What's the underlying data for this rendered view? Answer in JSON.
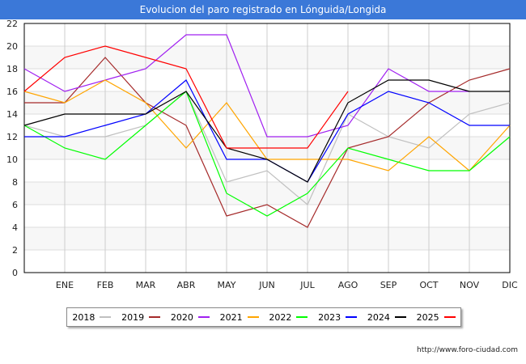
{
  "title": "Evolucion del paro registrado en Lónguida/Longida",
  "url": "http://www.foro-ciudad.com",
  "chart_data": {
    "type": "line",
    "title": "Evolucion del paro registrado en Lónguida/Longida",
    "categories": [
      "",
      "ENE",
      "FEB",
      "MAR",
      "ABR",
      "MAY",
      "JUN",
      "JUL",
      "AGO",
      "SEP",
      "OCT",
      "NOV",
      "DIC"
    ],
    "ylim": [
      0,
      22
    ],
    "yticks": [
      0,
      2,
      4,
      6,
      8,
      10,
      12,
      14,
      16,
      18,
      20,
      22
    ],
    "grid": true,
    "legend": "bottom",
    "series": [
      {
        "name": "2018",
        "color": "#c0c0c0",
        "values": [
          13,
          12,
          12,
          13,
          16,
          8,
          9,
          6,
          14,
          12,
          11,
          14,
          15
        ]
      },
      {
        "name": "2019",
        "color": "#a52a2a",
        "values": [
          15,
          15,
          19,
          15,
          13,
          5,
          6,
          4,
          11,
          12,
          15,
          17,
          18
        ]
      },
      {
        "name": "2020",
        "color": "#a020f0",
        "values": [
          18,
          16,
          17,
          18,
          21,
          21,
          12,
          12,
          13,
          18,
          16,
          16,
          null
        ]
      },
      {
        "name": "2021",
        "color": "#ffa500",
        "values": [
          16,
          15,
          17,
          15,
          11,
          15,
          10,
          10,
          10,
          9,
          12,
          9,
          13
        ]
      },
      {
        "name": "2022",
        "color": "#00ff00",
        "values": [
          13,
          11,
          10,
          13,
          16,
          7,
          5,
          7,
          11,
          10,
          9,
          9,
          12
        ]
      },
      {
        "name": "2023",
        "color": "#0000ff",
        "values": [
          12,
          12,
          13,
          14,
          17,
          10,
          10,
          8,
          14,
          16,
          15,
          13,
          13
        ]
      },
      {
        "name": "2024",
        "color": "#000000",
        "values": [
          13,
          14,
          14,
          14,
          16,
          11,
          10,
          8,
          15,
          17,
          17,
          16,
          16
        ]
      },
      {
        "name": "2025",
        "color": "#ff0000",
        "values": [
          16,
          19,
          20,
          19,
          18,
          11,
          11,
          11,
          16,
          null,
          null,
          null,
          null
        ]
      }
    ]
  }
}
